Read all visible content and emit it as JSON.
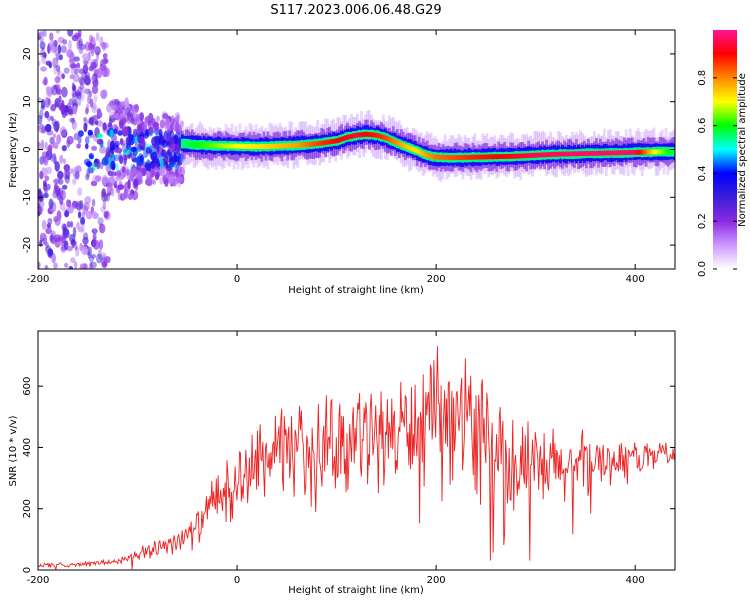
{
  "title": "S117.2023.006.06.48.G29",
  "chart_data": [
    {
      "type": "heatmap",
      "xlabel": "Height of straight line (km)",
      "ylabel": "Frequency (Hz)",
      "xlim": [
        -200,
        440
      ],
      "ylim": [
        -25,
        25
      ],
      "x_ticks": [
        -200,
        0,
        200,
        400
      ],
      "y_ticks": [
        -20,
        -10,
        0,
        10,
        20
      ],
      "colorbar": {
        "label": "Normalized spectral amplitude",
        "range": [
          0,
          1
        ],
        "ticks": [
          0.0,
          0.2,
          0.4,
          0.6,
          0.8
        ],
        "colormap": [
          "#ffffff",
          "#cc99ff",
          "#8a2be2",
          "#3b1fd6",
          "#0000ff",
          "#00ffff",
          "#00ff00",
          "#ffff00",
          "#ff8800",
          "#ff0000",
          "#ff1493"
        ]
      },
      "ridge": {
        "x": [
          -55,
          -40,
          -20,
          0,
          20,
          40,
          60,
          80,
          100,
          110,
          120,
          130,
          140,
          150,
          160,
          170,
          180,
          190,
          200,
          220,
          240,
          260,
          280,
          300,
          320,
          340,
          360,
          380,
          400,
          420,
          440
        ],
        "frequency": [
          1.2,
          1.0,
          0.8,
          0.7,
          0.6,
          0.7,
          0.9,
          1.2,
          1.8,
          2.5,
          3.0,
          3.2,
          3.0,
          2.4,
          1.5,
          0.6,
          -0.2,
          -1.2,
          -1.6,
          -1.7,
          -1.6,
          -1.5,
          -1.4,
          -1.2,
          -1.0,
          -0.9,
          -0.8,
          -0.7,
          -0.6,
          -0.5,
          -0.4
        ],
        "amplitude": [
          0.55,
          0.6,
          0.65,
          0.7,
          0.72,
          0.75,
          0.78,
          0.85,
          0.9,
          0.92,
          0.93,
          0.9,
          0.88,
          0.85,
          0.8,
          0.75,
          0.72,
          0.78,
          0.82,
          0.85,
          0.88,
          0.9,
          0.92,
          0.95,
          0.96,
          0.97,
          0.97,
          0.97,
          0.96,
          0.7,
          0.55
        ]
      },
      "noise_region": {
        "x_range": [
          -200,
          -55
        ],
        "frequency_range": [
          -25,
          25
        ]
      }
    },
    {
      "type": "line",
      "xlabel": "Height of straight line (km)",
      "ylabel": "SNR (10 * v/v)",
      "xlim": [
        -200,
        440
      ],
      "ylim": [
        0,
        780
      ],
      "x_ticks": [
        -200,
        0,
        200,
        400
      ],
      "y_ticks": [
        0,
        200,
        400,
        600
      ],
      "line_color": "#ee2222",
      "series": [
        {
          "x": [
            -200,
            -150,
            -120,
            -100,
            -80,
            -60,
            -45,
            -35,
            -25,
            -15,
            0,
            10,
            20,
            40,
            60,
            80,
            100,
            120,
            140,
            160,
            180,
            190,
            200,
            210,
            220,
            230,
            240,
            250,
            260,
            270,
            280,
            300,
            320,
            340,
            360,
            380,
            400,
            420,
            440
          ],
          "y": [
            15,
            20,
            28,
            45,
            75,
            100,
            120,
            160,
            220,
            260,
            280,
            320,
            350,
            380,
            400,
            410,
            420,
            430,
            440,
            450,
            470,
            480,
            490,
            500,
            510,
            495,
            470,
            440,
            400,
            380,
            360,
            320,
            330,
            340,
            350,
            360,
            370,
            380,
            385
          ],
          "spread": [
            10,
            10,
            15,
            25,
            40,
            50,
            60,
            70,
            90,
            110,
            140,
            150,
            160,
            170,
            175,
            180,
            190,
            200,
            200,
            210,
            230,
            240,
            250,
            250,
            250,
            240,
            230,
            220,
            210,
            200,
            200,
            180,
            160,
            140,
            110,
            90,
            70,
            50,
            40
          ]
        }
      ]
    }
  ]
}
